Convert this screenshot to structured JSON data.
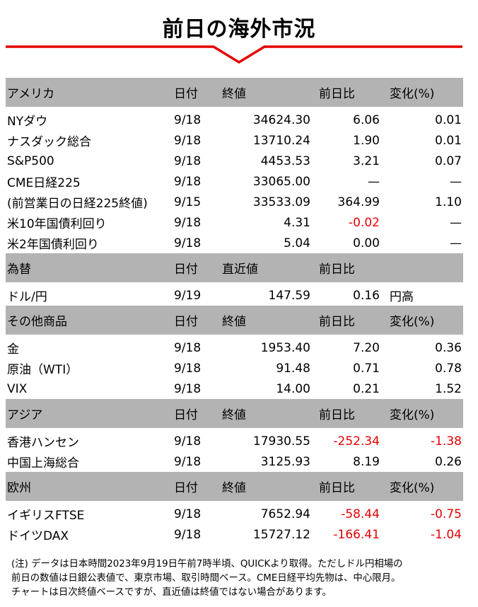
{
  "title": "前日の海外市況",
  "colors": {
    "header_bg": "#b3b3b3",
    "accent_red": "#e60000",
    "negative": "#e60000"
  },
  "sections": [
    {
      "header": [
        "アメリカ",
        "日付",
        "終値",
        "前日比",
        "変化(%)"
      ],
      "rows": [
        [
          "NYダウ",
          "9/18",
          "34624.30",
          "6.06",
          "0.01"
        ],
        [
          "ナスダック総合",
          "9/18",
          "13710.24",
          "1.90",
          "0.01"
        ],
        [
          "S&P500",
          "9/18",
          "4453.53",
          "3.21",
          "0.07"
        ],
        [
          "CME日経225",
          "9/18",
          "33065.00",
          "—",
          "—"
        ],
        [
          "(前営業日の日経225終値)",
          "9/15",
          "33533.09",
          "364.99",
          "1.10"
        ],
        [
          "米10年国債利回り",
          "9/18",
          "4.31",
          "-0.02",
          "—"
        ],
        [
          "米2年国債利回り",
          "9/18",
          "5.04",
          "0.00",
          "—"
        ]
      ]
    },
    {
      "header": [
        "為替",
        "日付",
        "直近値",
        "前日比",
        ""
      ],
      "rows": [
        [
          "ドル/円",
          "9/19",
          "147.59",
          "0.16",
          "円高"
        ]
      ]
    },
    {
      "header": [
        "その他商品",
        "日付",
        "終値",
        "前日比",
        "変化(%)"
      ],
      "rows": [
        [
          "金",
          "9/18",
          "1953.40",
          "7.20",
          "0.36"
        ],
        [
          "原油（WTI）",
          "9/18",
          "91.48",
          "0.71",
          "0.78"
        ],
        [
          "VIX",
          "9/18",
          "14.00",
          "0.21",
          "1.52"
        ]
      ]
    },
    {
      "header": [
        "アジア",
        "日付",
        "終値",
        "前日比",
        "変化(%)"
      ],
      "rows": [
        [
          "香港ハンセン",
          "9/18",
          "17930.55",
          "-252.34",
          "-1.38"
        ],
        [
          "中国上海総合",
          "9/18",
          "3125.93",
          "8.19",
          "0.26"
        ]
      ]
    },
    {
      "header": [
        "欧州",
        "日付",
        "終値",
        "前日比",
        "変化(%)"
      ],
      "rows": [
        [
          "イギリスFTSE",
          "9/18",
          "7652.94",
          "-58.44",
          "-0.75"
        ],
        [
          "ドイツDAX",
          "9/18",
          "15727.12",
          "-166.41",
          "-1.04"
        ]
      ]
    }
  ],
  "note": [
    "(注) データは日本時間2023年9月19日午前7時半頃、QUICKより取得。ただしドル円相場の",
    "前日の数値は日銀公表値で、東京市場、取引時間ベース。CME日経平均先物は、中心限月。",
    "チャートは日次終値ベースですが、直近値は終値ではない場合があります。"
  ]
}
